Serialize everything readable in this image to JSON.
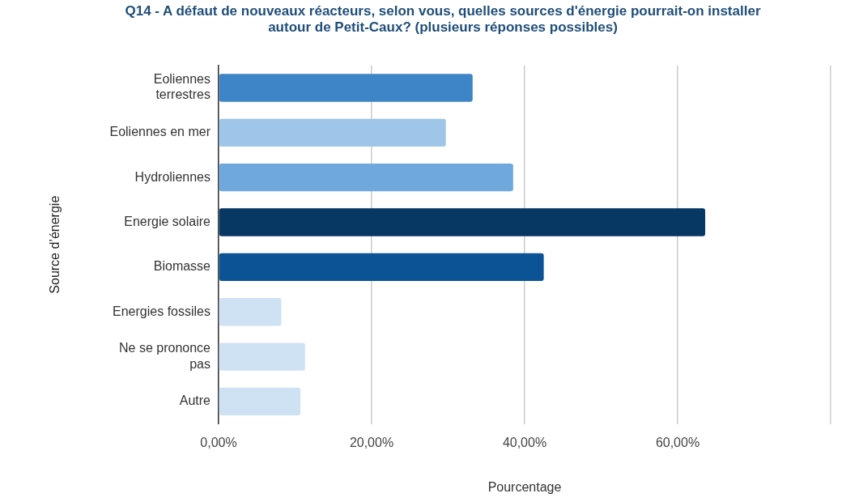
{
  "chart_data": {
    "type": "bar",
    "orientation": "horizontal",
    "title": "Q14 - A défaut de nouveaux réacteurs, selon vous, quelles sources d'énergie pourrait-on installer autour de Petit-Caux? (plusieurs réponses possibles)",
    "xlabel": "Pourcentage",
    "ylabel": "Source d’énergie",
    "categories": [
      "Eoliennes terrestres",
      "Eoliennes en mer",
      "Hydroliennes",
      "Energie solaire",
      "Biomasse",
      "Energies fossiles",
      "Ne se prononce pas",
      "Autre"
    ],
    "values": [
      33.2,
      29.7,
      38.5,
      63.6,
      42.5,
      8.2,
      11.3,
      10.7
    ],
    "colors": [
      "#3d85c6",
      "#9fc5e8",
      "#6fa8dc",
      "#073763",
      "#0b5394",
      "#cfe2f3",
      "#cfe2f3",
      "#cfe2f3"
    ],
    "xlim": [
      0,
      80
    ],
    "xticks": [
      {
        "value": 0,
        "label": "0,00%"
      },
      {
        "value": 20,
        "label": "20,00%"
      },
      {
        "value": 40,
        "label": "40,00%"
      },
      {
        "value": 60,
        "label": "60,00%"
      },
      {
        "value": 80,
        "label": null
      }
    ],
    "grid": "x",
    "legend": false
  }
}
